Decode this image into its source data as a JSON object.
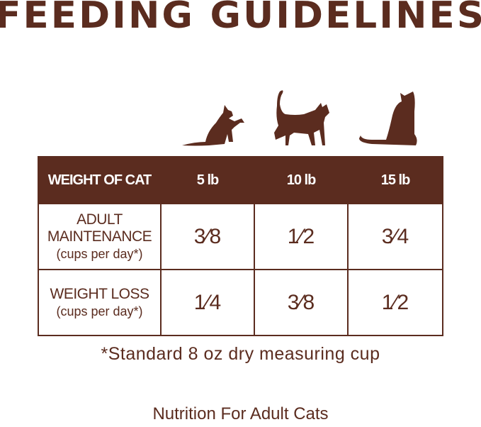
{
  "title": "FEEDING GUIDELINES",
  "brand_color": "#5b2c1f",
  "table": {
    "header": [
      "WEIGHT OF CAT",
      "5 lb",
      "10 lb",
      "15 lb"
    ],
    "rows": [
      {
        "label": "ADULT MAINTENANCE",
        "unit": "(cups per day*)",
        "values": [
          "3⁄8",
          "1⁄2",
          "3⁄4"
        ]
      },
      {
        "label": "WEIGHT LOSS",
        "unit": "(cups per day*)",
        "values": [
          "1⁄4",
          "3⁄8",
          "1⁄2"
        ]
      }
    ]
  },
  "footnote": "*Standard 8 oz dry measuring cup",
  "subtitle": "Nutrition For Adult Cats"
}
